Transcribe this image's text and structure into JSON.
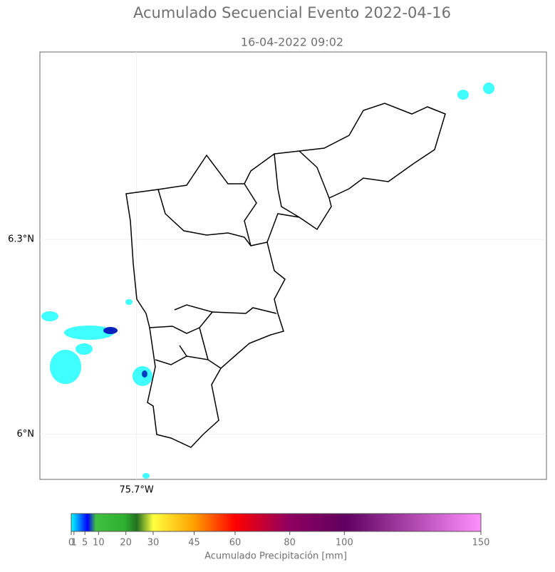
{
  "title": "Acumulado Secuencial Evento 2022-04-16",
  "subtitle": "16-04-2022 09:02",
  "map": {
    "xlim": [
      -75.849,
      -75.068
    ],
    "ylim": [
      5.93,
      6.589
    ],
    "xticks": [
      {
        "value": -75.7,
        "label": "75.7°W"
      }
    ],
    "yticks": [
      {
        "value": 6.3,
        "label": "6.3°N"
      },
      {
        "value": 6,
        "label": "6°N"
      }
    ],
    "grid": true
  },
  "colorbar": {
    "label": "Acumulado Precipitación [mm]",
    "lim": [
      0,
      150
    ],
    "ticks": [
      0,
      1,
      5,
      10,
      20,
      30,
      45,
      60,
      80,
      100,
      150
    ]
  }
}
